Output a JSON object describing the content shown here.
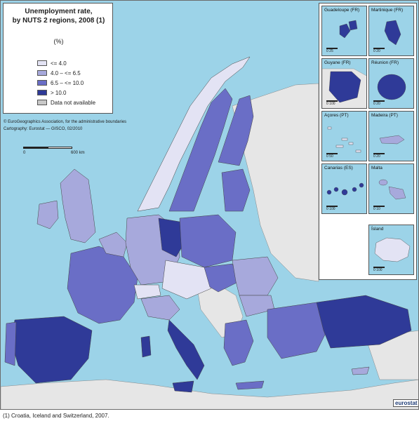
{
  "title_line1": "Unemployment rate,",
  "title_line2": "by NUTS 2 regions, 2008 (1)",
  "unit": "(%)",
  "legend": [
    {
      "label": "<= 4.0",
      "color": "#e3e3f4"
    },
    {
      "label": "4.0 – <= 6.5",
      "color": "#a7a9dc"
    },
    {
      "label": "6.5 – <= 10.0",
      "color": "#6a6ec6"
    },
    {
      "label": "> 10.0",
      "color": "#2f3a98"
    },
    {
      "label": "Data not available",
      "color": "#c8c8c8"
    }
  ],
  "credit_line1": "© EuroGeographics Association, for the administrative boundaries",
  "credit_line2": "Cartography: Eurostat — GISCO, 02/2010",
  "scale": {
    "start": "0",
    "end": "600 km"
  },
  "insets": [
    {
      "name": "Guadeloupe (FR)",
      "scale": "0     25"
    },
    {
      "name": "Martinique (FR)",
      "scale": "0     20"
    },
    {
      "name": "Guyane (FR)",
      "scale": "0     100"
    },
    {
      "name": "Réunion (FR)",
      "scale": "0     20"
    },
    {
      "name": "Açores (PT)",
      "scale": "0     50"
    },
    {
      "name": "Madeira (PT)",
      "scale": "0     20"
    },
    {
      "name": "Canarias (ES)",
      "scale": "0     100"
    },
    {
      "name": "Malta",
      "scale": "0     10"
    },
    {
      "name": "Ísland",
      "scale": "0     100"
    }
  ],
  "logo": "eurostat",
  "footnote": "(1) Croatia, Iceland and Switzerland, 2007.",
  "colors": {
    "sea": "#9cd3e8",
    "non_eu_land": "#e6e6e6",
    "border": "#444444"
  }
}
